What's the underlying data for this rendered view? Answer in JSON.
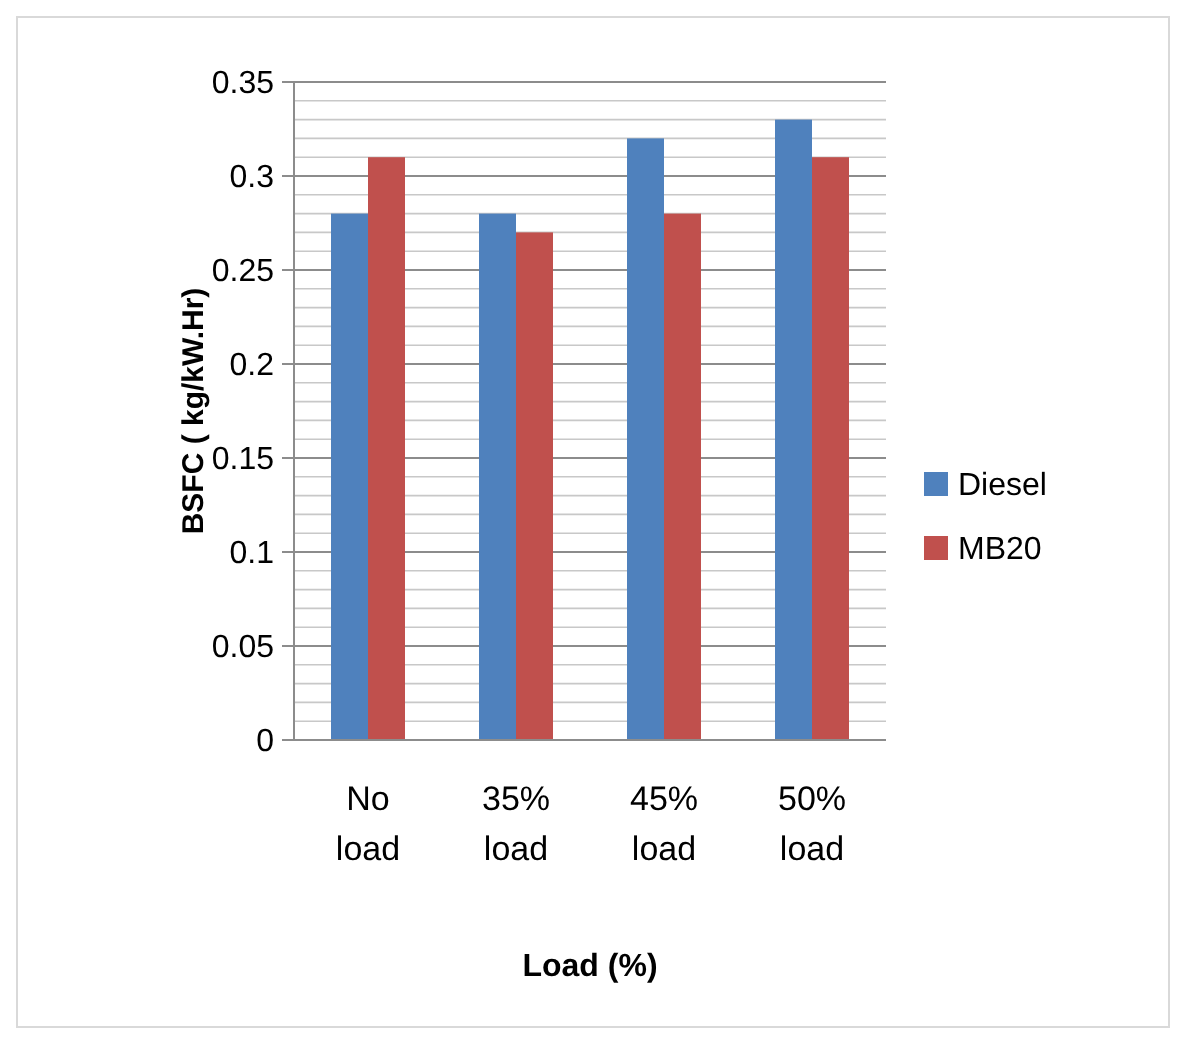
{
  "chart_data": {
    "type": "bar",
    "xlabel": "Load (%)",
    "ylabel": "BSFC ( kg/kW.Hr)",
    "categories": [
      "No load",
      "35% load",
      "45% load",
      "50% load"
    ],
    "series": [
      {
        "name": "Diesel",
        "color": "#4f81bd",
        "values": [
          0.28,
          0.28,
          0.32,
          0.33
        ]
      },
      {
        "name": "MB20",
        "color": "#c0504d",
        "values": [
          0.31,
          0.27,
          0.28,
          0.31
        ]
      }
    ],
    "ylim": [
      0,
      0.35
    ],
    "yticks": [
      0,
      {
        "value": 0.01,
        "label": null
      },
      {
        "value": 0.02,
        "label": null
      },
      {
        "value": 0.03,
        "label": null
      },
      {
        "value": 0.04,
        "label": null
      },
      0.05,
      {
        "value": 0.06,
        "label": null
      },
      {
        "value": 0.07,
        "label": null
      },
      {
        "value": 0.08,
        "label": null
      },
      {
        "value": 0.09,
        "label": null
      },
      0.1,
      {
        "value": 0.11,
        "label": null
      },
      {
        "value": 0.12,
        "label": null
      },
      {
        "value": 0.13,
        "label": null
      },
      {
        "value": 0.14,
        "label": null
      },
      0.15,
      {
        "value": 0.16,
        "label": null
      },
      {
        "value": 0.17,
        "label": null
      },
      {
        "value": 0.18,
        "label": null
      },
      {
        "value": 0.19,
        "label": null
      },
      0.2,
      {
        "value": 0.21,
        "label": null
      },
      {
        "value": 0.22,
        "label": null
      },
      {
        "value": 0.23,
        "label": null
      },
      {
        "value": 0.24,
        "label": null
      },
      0.25,
      {
        "value": 0.26,
        "label": null
      },
      {
        "value": 0.27,
        "label": null
      },
      {
        "value": 0.28,
        "label": null
      },
      {
        "value": 0.29,
        "label": null
      },
      0.3,
      {
        "value": 0.31,
        "label": null
      },
      {
        "value": 0.32,
        "label": null
      },
      {
        "value": 0.33,
        "label": null
      },
      {
        "value": 0.34,
        "label": null
      },
      0.35
    ],
    "grid": true,
    "legend": "right"
  }
}
